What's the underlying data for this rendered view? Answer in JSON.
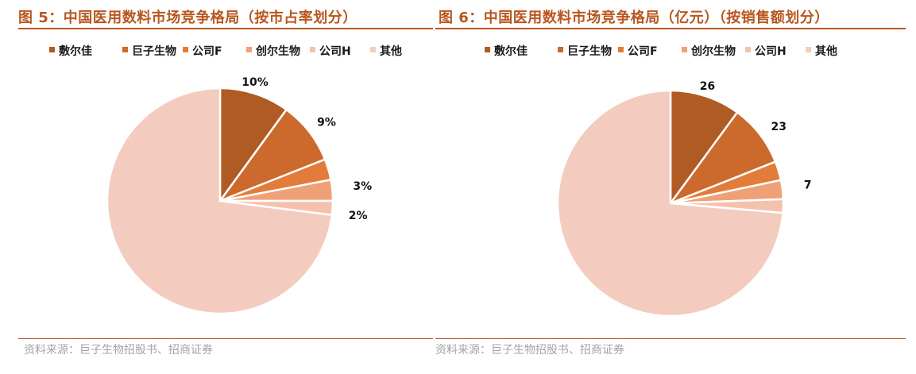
{
  "chart_data": [
    {
      "type": "pie",
      "title": "图 5：中国医用数料市场竞争格局（按市占率划分）",
      "source": "资料来源：巨子生物招股书、招商证券",
      "start_angle_deg": 0,
      "direction": "clockwise",
      "categories": [
        "敷尔佳",
        "巨子生物",
        "公司F",
        "创尔生物",
        "公司H",
        "其他"
      ],
      "values": [
        10,
        9,
        3,
        3,
        2,
        73
      ],
      "colors": [
        "#b05a24",
        "#cc6a2d",
        "#e37c3a",
        "#f0a077",
        "#f5c1ad",
        "#f4cbbf"
      ],
      "data_labels": [
        "10%",
        "9%",
        "",
        "3%",
        "2%",
        ""
      ],
      "legend": "top"
    },
    {
      "type": "pie",
      "title": "图 6：中国医用数料市场竞争格局（亿元）（按销售额划分）",
      "source": "资料来源：巨子生物招股书、招商证券",
      "start_angle_deg": 0,
      "direction": "clockwise",
      "categories": [
        "敷尔佳",
        "巨子生物",
        "公司F",
        "创尔生物",
        "公司H",
        "其他"
      ],
      "values": [
        26,
        23,
        7,
        7,
        5,
        190
      ],
      "colors": [
        "#b05a24",
        "#cc6a2d",
        "#e37c3a",
        "#f0a077",
        "#f5c1ad",
        "#f4cbbf"
      ],
      "data_labels": [
        "26",
        "23",
        "",
        "7",
        "",
        ""
      ],
      "legend": "top"
    }
  ]
}
